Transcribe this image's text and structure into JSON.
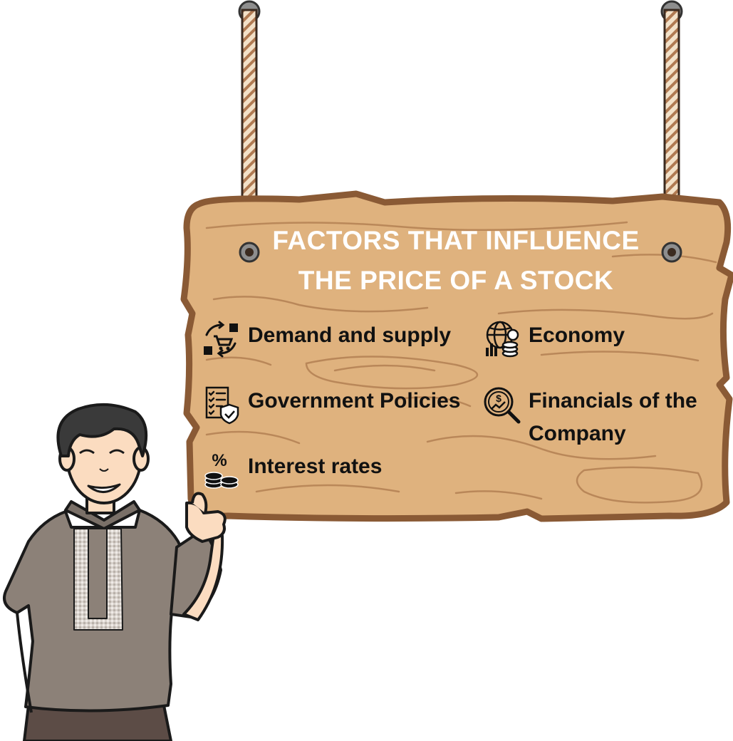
{
  "title": {
    "line1": "FACTORS THAT INFLUENCE",
    "line2": "THE PRICE OF A STOCK"
  },
  "factors": [
    {
      "label": "Demand and supply",
      "icon": "supply-cycle-icon"
    },
    {
      "label": "Economy",
      "icon": "globe-coins-chart-icon"
    },
    {
      "label": "Government Policies",
      "icon": "checklist-shield-icon"
    },
    {
      "label": "Financials of the\nCompany",
      "line1": "Financials of the",
      "line2": "Company",
      "icon": "dollar-magnifier-icon"
    },
    {
      "label": "Interest rates",
      "icon": "percent-coins-icon"
    }
  ],
  "colors": {
    "wood": "#dfb27e",
    "wood_outline": "#8a5a35",
    "title_text": "#ffffff",
    "shirt": "#8c8178",
    "hair": "#3a3a3a",
    "skin": "#fbdcc0"
  }
}
